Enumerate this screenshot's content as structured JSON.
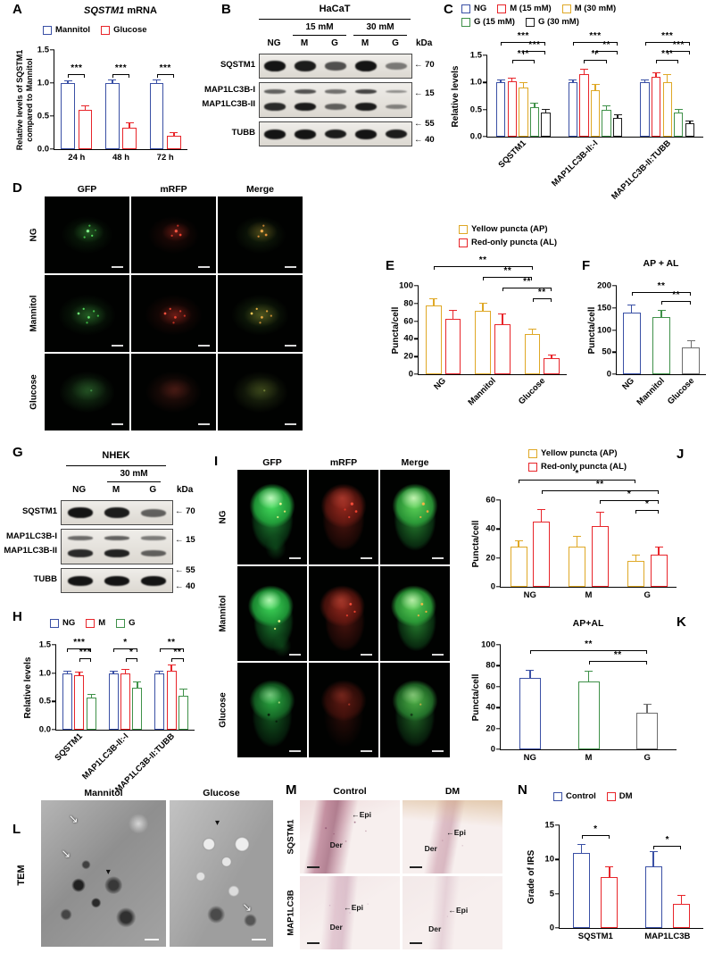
{
  "panels": {
    "A": {
      "letter": "A"
    },
    "B": {
      "letter": "B",
      "title": "HaCaT",
      "group1": "15 mM",
      "group2": "30 mM",
      "kda": "kDa",
      "lanes": [
        "NG",
        "M",
        "G",
        "M",
        "G"
      ],
      "row_labels": [
        "SQSTM1",
        "MAP1LC3B-I",
        "MAP1LC3B-II",
        "TUBB"
      ],
      "markers": [
        "70",
        "15",
        "55",
        "40"
      ],
      "bands": {
        "sqstm1": [
          1,
          0.95,
          0.62,
          1,
          0.35
        ],
        "lc3b1": [
          0.5,
          0.6,
          0.42,
          0.7,
          0.22
        ],
        "lc3b2": [
          0.85,
          0.95,
          0.5,
          0.95,
          0.3
        ],
        "tubb": [
          1,
          1,
          0.95,
          1,
          0.95
        ]
      }
    },
    "C": {
      "letter": "C"
    },
    "D": {
      "letter": "D",
      "col_headers": [
        "GFP",
        "mRFP",
        "Merge"
      ],
      "row_labels": [
        "NG",
        "Mannitol",
        "Glucose"
      ]
    },
    "E": {
      "letter": "E"
    },
    "F": {
      "letter": "F"
    },
    "G": {
      "letter": "G",
      "title": "NHEK",
      "group1": "30 mM",
      "kda": "kDa",
      "lanes": [
        "NG",
        "M",
        "G"
      ],
      "row_labels": [
        "SQSTM1",
        "MAP1LC3B-I",
        "MAP1LC3B-II",
        "TUBB"
      ],
      "markers": [
        "70",
        "15",
        "55",
        "40"
      ],
      "bands": {
        "sqstm1": [
          1,
          0.95,
          0.5
        ],
        "lc3b1": [
          0.45,
          0.5,
          0.35
        ],
        "lc3b2": [
          0.85,
          0.9,
          0.5
        ],
        "tubb": [
          1,
          1,
          1
        ]
      }
    },
    "H": {
      "letter": "H"
    },
    "I": {
      "letter": "I",
      "col_headers": [
        "GFP",
        "mRFP",
        "Merge"
      ],
      "row_labels": [
        "NG",
        "Mannitol",
        "Glucose"
      ]
    },
    "J": {
      "letter": "J"
    },
    "K": {
      "letter": "K"
    },
    "L": {
      "letter": "L",
      "side_label": "TEM",
      "col_headers": [
        "Mannitol",
        "Glucose"
      ]
    },
    "M": {
      "letter": "M",
      "col_headers": [
        "Control",
        "DM"
      ],
      "row_labels": [
        "SQSTM1",
        "MAP1LC3B"
      ],
      "epi": "Epi",
      "der": "Der"
    },
    "N": {
      "letter": "N"
    }
  },
  "chart_data": [
    {
      "key": "A",
      "type": "bar",
      "title_italic": "SQSTM1",
      "title_rest": " mRNA",
      "ylabel": "Relative levels of SQSTM1\ncompared to Mannitol",
      "ylim": [
        0,
        1.5
      ],
      "yticks": [
        "0.0",
        "0.5",
        "1.0",
        "1.5"
      ],
      "categories": [
        "24 h",
        "48 h",
        "72 h"
      ],
      "xrot": false,
      "legend_rows": [
        [
          0,
          1
        ]
      ],
      "series": [
        {
          "name": "Mannitol",
          "color": "#3a50a5",
          "values": [
            1.0,
            1.0,
            1.0
          ],
          "errors": [
            0.04,
            0.05,
            0.05
          ]
        },
        {
          "name": "Glucose",
          "color": "#e8252a",
          "values": [
            0.6,
            0.33,
            0.2
          ],
          "errors": [
            0.06,
            0.07,
            0.06
          ]
        }
      ],
      "sig": [
        {
          "a": [
            0,
            0
          ],
          "b": [
            0,
            1
          ],
          "y": 1.13,
          "label": "***"
        },
        {
          "a": [
            1,
            0
          ],
          "b": [
            1,
            1
          ],
          "y": 1.13,
          "label": "***"
        },
        {
          "a": [
            2,
            0
          ],
          "b": [
            2,
            1
          ],
          "y": 1.13,
          "label": "***"
        }
      ]
    },
    {
      "key": "C",
      "type": "bar",
      "ylabel": "Relative levels",
      "ylim": [
        0,
        1.5
      ],
      "yticks": [
        "0.0",
        "0.5",
        "1.0",
        "1.5"
      ],
      "categories": [
        "SQSTM1",
        "MAP1LC3B-II:-I",
        "MAP1LC3B-II:TUBB"
      ],
      "xrot": true,
      "legend_rows": [
        [
          0,
          1,
          2
        ],
        [
          3,
          4
        ]
      ],
      "series": [
        {
          "name": "NG",
          "color": "#3a50a5",
          "values": [
            1.0,
            1.0,
            1.0
          ],
          "errors": [
            0.05,
            0.06,
            0.05
          ]
        },
        {
          "name": "M (15 mM)",
          "color": "#e8252a",
          "values": [
            1.02,
            1.15,
            1.1
          ],
          "errors": [
            0.07,
            0.1,
            0.09
          ]
        },
        {
          "name": "M (30 mM)",
          "color": "#dfa826",
          "values": [
            0.9,
            0.85,
            1.0
          ],
          "errors": [
            0.1,
            0.12,
            0.16
          ]
        },
        {
          "name": "G (15 mM)",
          "color": "#3f9149",
          "values": [
            0.55,
            0.5,
            0.45
          ],
          "errors": [
            0.07,
            0.08,
            0.07
          ]
        },
        {
          "name": "G (30 mM)",
          "color": "#1c1c1c",
          "values": [
            0.45,
            0.35,
            0.25
          ],
          "errors": [
            0.06,
            0.06,
            0.05
          ]
        }
      ],
      "sig": [
        {
          "a": [
            0,
            1
          ],
          "b": [
            0,
            3
          ],
          "y": 1.42,
          "label": "***"
        },
        {
          "a": [
            0,
            2
          ],
          "b": [
            0,
            4
          ],
          "y": 1.58,
          "label": "***"
        },
        {
          "a": [
            0,
            0
          ],
          "b": [
            0,
            4
          ],
          "y": 1.74,
          "label": "***"
        },
        {
          "a": [
            1,
            1
          ],
          "b": [
            1,
            3
          ],
          "y": 1.42,
          "label": "**"
        },
        {
          "a": [
            1,
            2
          ],
          "b": [
            1,
            4
          ],
          "y": 1.58,
          "label": "**"
        },
        {
          "a": [
            1,
            0
          ],
          "b": [
            1,
            4
          ],
          "y": 1.74,
          "label": "***"
        },
        {
          "a": [
            2,
            1
          ],
          "b": [
            2,
            3
          ],
          "y": 1.42,
          "label": "***"
        },
        {
          "a": [
            2,
            2
          ],
          "b": [
            2,
            4
          ],
          "y": 1.58,
          "label": "***"
        },
        {
          "a": [
            2,
            0
          ],
          "b": [
            2,
            4
          ],
          "y": 1.74,
          "label": "***"
        }
      ]
    },
    {
      "key": "E",
      "type": "bar",
      "ylabel": "Puncta/cell",
      "ylim": [
        0,
        100
      ],
      "yticks": [
        "0",
        "20",
        "40",
        "60",
        "80",
        "100"
      ],
      "categories": [
        "NG",
        "Mannitol",
        "Glucose"
      ],
      "xrot": true,
      "legend_rows": [
        [
          0
        ],
        [
          1
        ]
      ],
      "series": [
        {
          "name": "Yellow puncta (AP)",
          "color": "#dfa826",
          "values": [
            78,
            72,
            45
          ],
          "errors": [
            8,
            9,
            7
          ]
        },
        {
          "name": "Red-only puncta (AL)",
          "color": "#e8252a",
          "values": [
            63,
            57,
            18
          ],
          "errors": [
            10,
            12,
            4
          ]
        }
      ],
      "sig": [
        {
          "a": [
            0,
            0
          ],
          "b": [
            2,
            0
          ],
          "y": 122,
          "label": "**"
        },
        {
          "a": [
            1,
            0
          ],
          "b": [
            2,
            0
          ],
          "y": 110,
          "label": "**"
        },
        {
          "a": [
            1,
            1
          ],
          "b": [
            2,
            1
          ],
          "y": 98,
          "label": "**"
        },
        {
          "a": [
            2,
            0
          ],
          "b": [
            2,
            1
          ],
          "y": 86,
          "label": "**"
        }
      ]
    },
    {
      "key": "F",
      "type": "bar",
      "title": "AP + AL",
      "ylabel": "Puncta/cell",
      "ylim": [
        0,
        200
      ],
      "yticks": [
        "0",
        "50",
        "100",
        "150",
        "200"
      ],
      "categories": [
        "NG",
        "Mannitol",
        "Glucose"
      ],
      "xrot": true,
      "bw": 20,
      "series": [
        {
          "name": "",
          "colors": [
            "#3a50a5",
            "#3f9149",
            "#6e6e6e"
          ],
          "values": [
            140,
            130,
            60
          ],
          "errors": [
            18,
            15,
            16
          ]
        }
      ],
      "sig": [
        {
          "a": [
            0,
            0
          ],
          "b": [
            2,
            0
          ],
          "y": 186,
          "label": "**"
        },
        {
          "a": [
            1,
            0
          ],
          "b": [
            2,
            0
          ],
          "y": 166,
          "label": "**"
        }
      ]
    },
    {
      "key": "H",
      "type": "bar",
      "ylabel": "Relative levels",
      "ylim": [
        0,
        1.5
      ],
      "yticks": [
        "0.0",
        "0.5",
        "1.0",
        "1.5"
      ],
      "categories": [
        "SQSTM1",
        "MAP1LC3B-II:-I",
        "MAP1LC3B-II:TUBB"
      ],
      "xrot": true,
      "legend_rows": [
        [
          0,
          1,
          2
        ]
      ],
      "series": [
        {
          "name": "NG",
          "color": "#3a50a5",
          "values": [
            1.0,
            1.0,
            1.0
          ],
          "errors": [
            0.04,
            0.05,
            0.05
          ]
        },
        {
          "name": "M",
          "color": "#e8252a",
          "values": [
            0.97,
            1.0,
            1.05
          ],
          "errors": [
            0.05,
            0.08,
            0.1
          ]
        },
        {
          "name": "G",
          "color": "#3f9149",
          "values": [
            0.57,
            0.75,
            0.6
          ],
          "errors": [
            0.07,
            0.1,
            0.12
          ]
        }
      ],
      "sig": [
        {
          "a": [
            0,
            1
          ],
          "b": [
            0,
            2
          ],
          "y": 1.26,
          "label": "***"
        },
        {
          "a": [
            0,
            0
          ],
          "b": [
            0,
            2
          ],
          "y": 1.44,
          "label": "***"
        },
        {
          "a": [
            1,
            1
          ],
          "b": [
            1,
            2
          ],
          "y": 1.26,
          "label": "*"
        },
        {
          "a": [
            1,
            0
          ],
          "b": [
            1,
            2
          ],
          "y": 1.44,
          "label": "*"
        },
        {
          "a": [
            2,
            1
          ],
          "b": [
            2,
            2
          ],
          "y": 1.26,
          "label": "**"
        },
        {
          "a": [
            2,
            0
          ],
          "b": [
            2,
            2
          ],
          "y": 1.44,
          "label": "**"
        }
      ]
    },
    {
      "key": "J",
      "type": "bar",
      "ylabel": "Puncta/cell",
      "ylim": [
        0,
        60
      ],
      "yticks": [
        "0",
        "20",
        "40",
        "60"
      ],
      "categories": [
        "NG",
        "M",
        "G"
      ],
      "xrot": false,
      "legend_rows": [
        [
          0
        ],
        [
          1
        ]
      ],
      "series": [
        {
          "name": "Yellow puncta (AP)",
          "color": "#dfa826",
          "values": [
            28,
            28,
            18
          ],
          "errors": [
            4,
            7,
            4
          ]
        },
        {
          "name": "Red-only puncta (AL)",
          "color": "#e8252a",
          "values": [
            45,
            42,
            22
          ],
          "errors": [
            9,
            10,
            6
          ]
        }
      ],
      "sig": [
        {
          "a": [
            0,
            0
          ],
          "b": [
            2,
            0
          ],
          "y": 74,
          "label": "*"
        },
        {
          "a": [
            0,
            1
          ],
          "b": [
            2,
            1
          ],
          "y": 67,
          "label": "**"
        },
        {
          "a": [
            1,
            1
          ],
          "b": [
            2,
            1
          ],
          "y": 60,
          "label": "*"
        },
        {
          "a": [
            2,
            0
          ],
          "b": [
            2,
            1
          ],
          "y": 53,
          "label": "*"
        }
      ]
    },
    {
      "key": "K",
      "type": "bar",
      "title": "AP+AL",
      "ylabel": "Puncta/cell",
      "ylim": [
        0,
        100
      ],
      "yticks": [
        "0",
        "20",
        "40",
        "60",
        "80",
        "100"
      ],
      "categories": [
        "NG",
        "M",
        "G"
      ],
      "xrot": false,
      "bw": 24,
      "series": [
        {
          "name": "",
          "colors": [
            "#3a50a5",
            "#3f9149",
            "#6e6e6e"
          ],
          "values": [
            68,
            65,
            35
          ],
          "errors": [
            8,
            10,
            9
          ]
        }
      ],
      "sig": [
        {
          "a": [
            0,
            0
          ],
          "b": [
            2,
            0
          ],
          "y": 95,
          "label": "**"
        },
        {
          "a": [
            1,
            0
          ],
          "b": [
            2,
            0
          ],
          "y": 85,
          "label": "**"
        }
      ]
    },
    {
      "key": "N",
      "type": "bar",
      "ylabel": "Grade of IRS",
      "ylim": [
        0,
        15
      ],
      "yticks": [
        "0",
        "5",
        "10",
        "15"
      ],
      "categories": [
        "SQSTM1",
        "MAP1LC3B"
      ],
      "xrot": false,
      "legend_rows": [
        [
          0,
          1
        ]
      ],
      "series": [
        {
          "name": "Control",
          "color": "#3a50a5",
          "values": [
            11,
            9
          ],
          "errors": [
            1.3,
            2.2
          ]
        },
        {
          "name": "DM",
          "color": "#e8252a",
          "values": [
            7.5,
            3.5
          ],
          "errors": [
            1.5,
            1.3
          ]
        }
      ],
      "sig": [
        {
          "a": [
            0,
            0
          ],
          "b": [
            0,
            1
          ],
          "y": 13.6,
          "label": "*"
        },
        {
          "a": [
            1,
            0
          ],
          "b": [
            1,
            1
          ],
          "y": 12.0,
          "label": "*"
        }
      ]
    }
  ]
}
